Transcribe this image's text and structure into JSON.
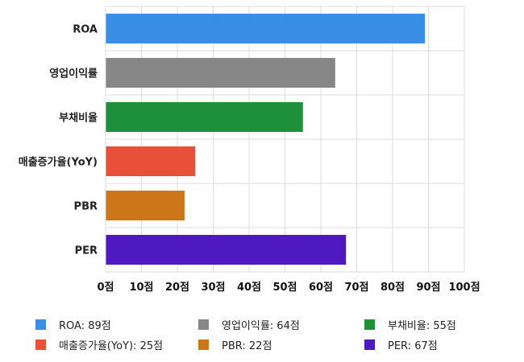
{
  "chart_data": {
    "type": "bar",
    "orientation": "horizontal",
    "categories": [
      "ROA",
      "영업이익률",
      "부채비율",
      "매출증가율(YoY)",
      "PBR",
      "PER"
    ],
    "values": [
      89,
      64,
      55,
      25,
      22,
      67
    ],
    "colors": [
      "#3a8ee6",
      "#878787",
      "#1e8f3a",
      "#e8503a",
      "#cc7519",
      "#4f19c2"
    ],
    "xlim": [
      0,
      100
    ],
    "xticks": [
      0,
      10,
      20,
      30,
      40,
      50,
      60,
      70,
      80,
      90,
      100
    ],
    "tick_suffix": "점",
    "grid": true,
    "legend_position": "bottom",
    "legend": [
      {
        "label": "ROA: 89점",
        "color": "#3a8ee6"
      },
      {
        "label": "영업이익률: 64점",
        "color": "#878787"
      },
      {
        "label": "부채비율: 55점",
        "color": "#1e8f3a"
      },
      {
        "label": "매출증가율(YoY): 25점",
        "color": "#e8503a"
      },
      {
        "label": "PBR: 22점",
        "color": "#cc7519"
      },
      {
        "label": "PER: 67점",
        "color": "#4f19c2"
      }
    ]
  }
}
